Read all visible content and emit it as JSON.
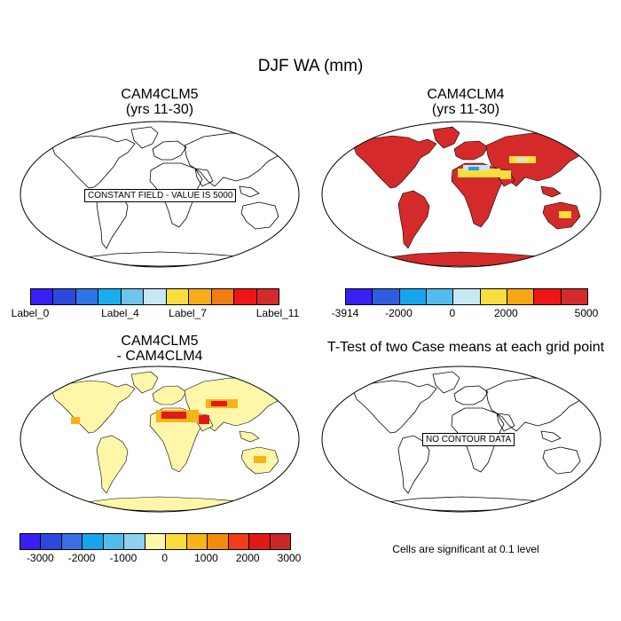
{
  "chart_data": {
    "type": "heatmap",
    "title": "DJF WA (mm)",
    "panels": [
      {
        "title_line1": "CAM4CLM5",
        "title_line2": "(yrs 11-30)",
        "note": "CONSTANT FIELD - VALUE IS 5000",
        "constant_value": 5000,
        "colorbar": {
          "colors": [
            "#3a1ff5",
            "#2b49de",
            "#2f74e8",
            "#17aef0",
            "#6fc3ec",
            "#c6e8f3",
            "#f8dd3d",
            "#f7ae16",
            "#f27d10",
            "#ef1515",
            "#d52a2a"
          ],
          "labels": [
            "Label_0",
            "Label_4",
            "Label_7",
            "Label_11"
          ],
          "label_slots": [
            0,
            4,
            7,
            11
          ]
        }
      },
      {
        "title_line1": "CAM4CLM4",
        "title_line2": "(yrs 11-30)",
        "fill": "predominantly 5000 over land; lower values over Sahara, Arabia and Central Asia",
        "colorbar": {
          "colors": [
            "#3a1ff5",
            "#2f5de0",
            "#17a5f0",
            "#52bdec",
            "#c6e8f3",
            "#f8dd3d",
            "#f7a415",
            "#ef1515",
            "#d52a2a"
          ],
          "labels": [
            "-3914",
            "-2000",
            "0",
            "2000",
            "5000"
          ],
          "label_slots": [
            0,
            2,
            4,
            6,
            9
          ]
        }
      },
      {
        "title_line1": "CAM4CLM5",
        "title_line2": "- CAM4CLM4",
        "fill": "mostly 0 to 1000 over land; 1000 to 3000 over Sahara, Arabia and Central Asia",
        "colorbar": {
          "colors": [
            "#3a1ff5",
            "#2b49de",
            "#3c6fe4",
            "#17a5f0",
            "#52bdec",
            "#8fd0ee",
            "#fef6a9",
            "#f8dd3d",
            "#f7b416",
            "#f28b0d",
            "#ef3d16",
            "#e01818",
            "#c82828"
          ],
          "labels": [
            "-3000",
            "-2000",
            "-1000",
            "0",
            "1000",
            "2000",
            "3000"
          ],
          "label_slots": [
            1,
            3,
            5,
            7,
            9,
            11,
            13
          ]
        }
      },
      {
        "title_line1": "T-Test of two Case means at each grid point",
        "note": "NO CONTOUR DATA",
        "footer": "Cells are significant at 0.1 level"
      }
    ]
  },
  "colors": {
    "panel2_land": "#d52a2a",
    "panel2_dry": "#f8dd3d",
    "panel2_drier": "#c6e8f3",
    "panel2_driest": "#17a5f0",
    "panel3_land": "#fef6a9",
    "panel3_mid": "#f7b416",
    "panel3_high": "#e01818",
    "panel3_peak": "#c82828"
  }
}
